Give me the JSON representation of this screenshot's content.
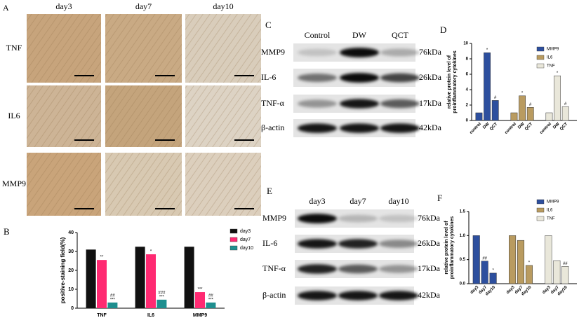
{
  "panel_a": {
    "label": "A",
    "columns": [
      "day3",
      "day7",
      "day10"
    ],
    "rows": [
      "TNF",
      "IL6",
      "MMP9"
    ]
  },
  "panel_c": {
    "label": "C",
    "columns": [
      "Control",
      "DW",
      "QCT"
    ],
    "rows": [
      "MMP9",
      "IL-6",
      "TNF-α",
      "β-actin"
    ],
    "sizes": [
      "76kDa",
      "26kDa",
      "17kDa",
      "42kDa"
    ]
  },
  "panel_e": {
    "label": "E",
    "columns": [
      "day3",
      "day7",
      "day10"
    ],
    "rows": [
      "MMP9",
      "IL-6",
      "TNF-α",
      "β-actin"
    ],
    "sizes": [
      "76kDa",
      "26kDa",
      "17kDa",
      "42kDa"
    ]
  },
  "chart_data": [
    {
      "type": "bar",
      "label": "B",
      "group_by": "category",
      "ylabel": [
        "positive-staining field(%)"
      ],
      "categories": [
        "TNF",
        "IL6",
        "MMP9"
      ],
      "series": [
        {
          "name": "day3",
          "color": "#111111",
          "values": [
            31,
            32.5,
            32.5
          ]
        },
        {
          "name": "day7",
          "color": "#ff2a72",
          "values": [
            25.5,
            28.5,
            8.5
          ],
          "annotations": [
            [
              "**"
            ],
            [
              "*"
            ],
            [
              "***"
            ]
          ]
        },
        {
          "name": "day10",
          "color": "#1e8f8f",
          "values": [
            3,
            4.5,
            3
          ],
          "annotations": [
            [
              "##",
              "***"
            ],
            [
              "###",
              "***"
            ],
            [
              "##",
              "***"
            ]
          ]
        }
      ],
      "ylim": [
        0,
        40
      ],
      "yticks": [
        0,
        10,
        20,
        30,
        40
      ]
    },
    {
      "type": "bar",
      "label": "D",
      "group_by": "series",
      "ylabel": [
        "relative protein level of",
        "proinflammatory cytokines"
      ],
      "categories": [
        "control",
        "DW",
        "QCT"
      ],
      "series": [
        {
          "name": "MMP9",
          "color": "#2d4f9e",
          "values": [
            1,
            8.8,
            2.6
          ],
          "annotations": [
            null,
            [
              "*"
            ],
            [
              "#"
            ]
          ]
        },
        {
          "name": "IL6",
          "color": "#b99b60",
          "values": [
            1,
            3.2,
            1.7
          ],
          "annotations": [
            null,
            [
              "*"
            ],
            [
              "#"
            ]
          ]
        },
        {
          "name": "TNF",
          "color": "#e9e7da",
          "values": [
            1,
            5.8,
            1.8
          ],
          "annotations": [
            null,
            [
              "*"
            ],
            [
              "#"
            ]
          ]
        }
      ],
      "ylim": [
        0,
        10
      ],
      "yticks": [
        0,
        2,
        4,
        6,
        8,
        10
      ]
    },
    {
      "type": "bar",
      "label": "F",
      "group_by": "series",
      "ylabel": [
        "relative protein level of",
        "proinflammatory cytokines"
      ],
      "categories": [
        "day3",
        "day7",
        "day10"
      ],
      "series": [
        {
          "name": "MMP9",
          "color": "#2d4f9e",
          "values": [
            1,
            0.47,
            0.22
          ],
          "annotations": [
            null,
            [
              "##"
            ],
            [
              "*"
            ]
          ]
        },
        {
          "name": "IL6",
          "color": "#b99b60",
          "values": [
            1,
            0.9,
            0.38
          ],
          "annotations": [
            null,
            null,
            [
              "*"
            ]
          ]
        },
        {
          "name": "TNF",
          "color": "#e9e7da",
          "values": [
            1,
            0.48,
            0.36
          ],
          "annotations": [
            null,
            null,
            [
              "##"
            ]
          ]
        }
      ],
      "ylim": [
        0,
        1.5
      ],
      "yticks": [
        {
          "value": 0,
          "label": "0.0"
        },
        {
          "value": 0.5,
          "label": "0.5"
        },
        {
          "value": 1,
          "label": "1.0"
        },
        {
          "value": 1.5,
          "label": "1.5"
        }
      ]
    }
  ]
}
